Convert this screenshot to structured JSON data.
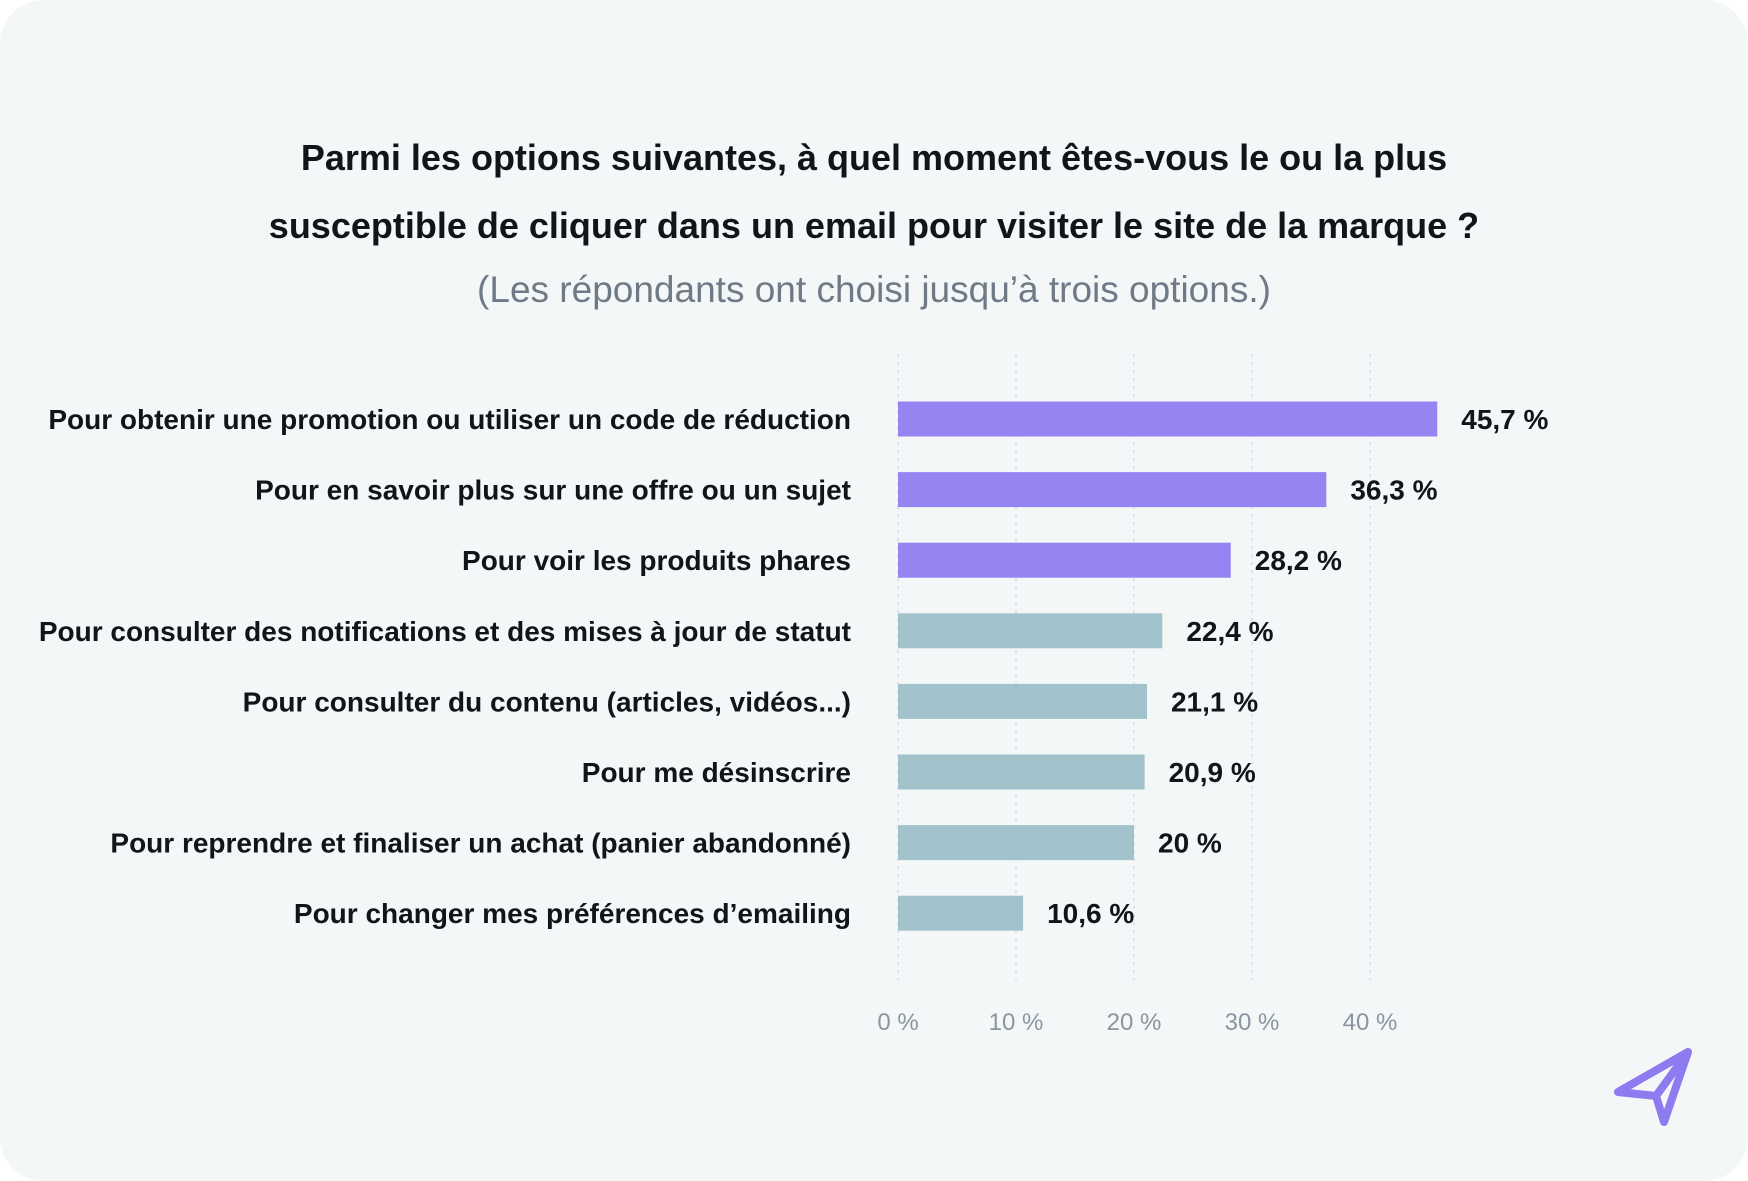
{
  "chart_data": {
    "type": "bar",
    "orientation": "horizontal",
    "title_line1": "Parmi les options suivantes, à quel moment êtes-vous le ou la plus",
    "title_line2": "susceptible de cliquer dans un email pour visiter le site de la marque ?",
    "subtitle": "(Les répondants ont choisi jusqu’à trois options.)",
    "categories": [
      "Pour obtenir une promotion ou utiliser un code de réduction",
      "Pour en savoir plus sur une offre ou un sujet",
      "Pour voir les produits phares",
      "Pour consulter des notifications et des mises à jour de statut",
      "Pour consulter du contenu (articles, vidéos...)",
      "Pour me désinscrire",
      "Pour reprendre et finaliser un achat (panier abandonné)",
      "Pour changer mes préférences d’emailing"
    ],
    "values": [
      45.7,
      36.3,
      28.2,
      22.4,
      21.1,
      20.9,
      20,
      10.6
    ],
    "value_labels": [
      "45,7 %",
      "36,3 %",
      "28,2 %",
      "22,4 %",
      "21,1 %",
      "20,9 %",
      "20 %",
      "10,6 %"
    ],
    "highlight_count": 3,
    "colors": {
      "highlight": "#9584f1",
      "default": "#a2c3cb",
      "grid": "#d5dbe0",
      "logo": "#8f7bf0"
    },
    "x_ticks": [
      0,
      10,
      20,
      30,
      40
    ],
    "x_tick_labels": [
      "0 %",
      "10 %",
      "20 %",
      "30 %",
      "40 %"
    ],
    "xlim": [
      0,
      46
    ],
    "grid": true,
    "xlabel": "",
    "ylabel": ""
  },
  "logo": {
    "icon": "paper-plane-icon"
  }
}
